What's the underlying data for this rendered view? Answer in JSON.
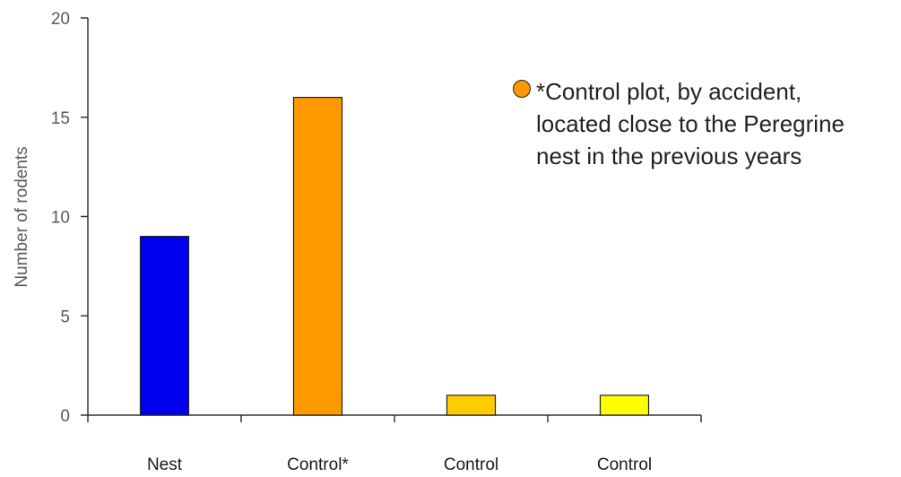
{
  "chart_data": {
    "type": "bar",
    "categories": [
      "Nest",
      "Control*",
      "Control",
      "Control"
    ],
    "values": [
      9,
      16,
      1,
      1
    ],
    "bar_colors": [
      "#0000ee",
      "#ff9900",
      "#ffcc00",
      "#ffff00"
    ],
    "xlabel": "",
    "ylabel": "Number of rodents",
    "ylim": [
      0,
      20
    ],
    "yticks": [
      0,
      5,
      10,
      15,
      20
    ],
    "grid": false,
    "legend": {
      "placement": "top-right",
      "marker_color": "#ff9900",
      "lines": [
        "*Control plot, by accident,",
        "located close to the Peregrine",
        "nest in the previous years"
      ]
    }
  }
}
